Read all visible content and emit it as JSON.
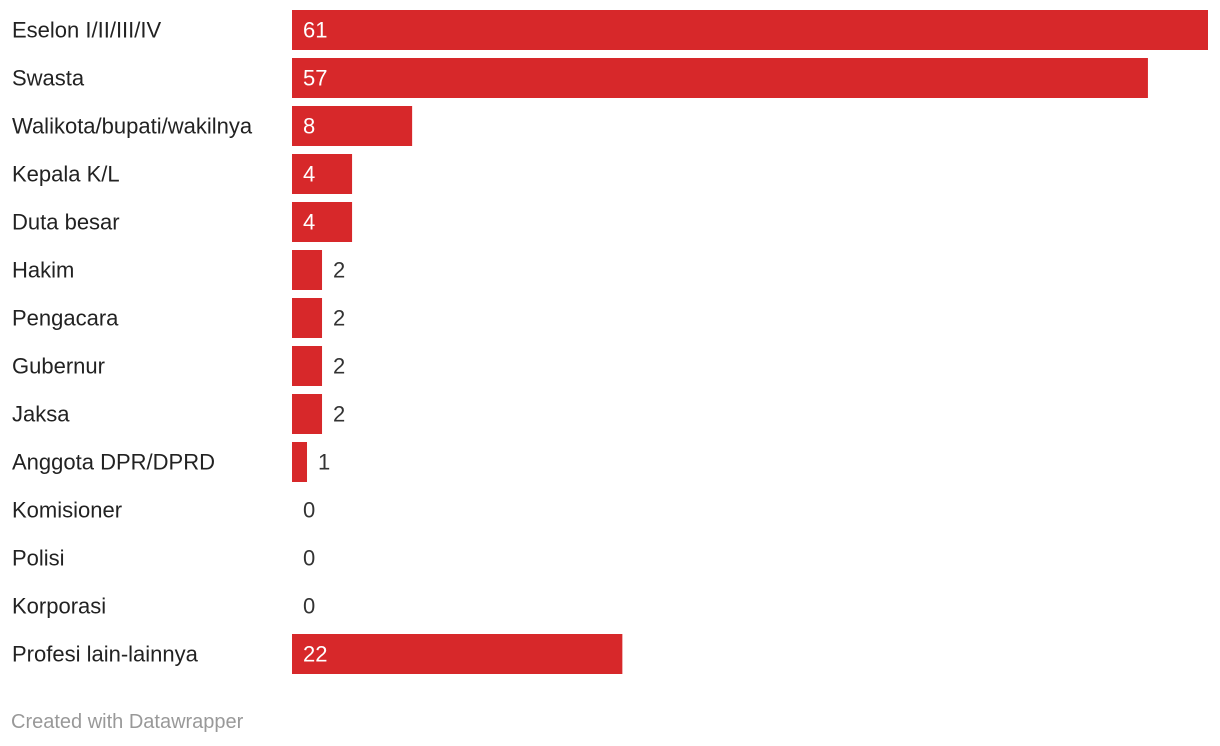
{
  "colors": {
    "bar": "#d7282a",
    "label_text": "#222222",
    "value_inside": "#ffffff",
    "value_outside": "#333333",
    "credit_text": "#999999"
  },
  "chart_data": {
    "type": "bar",
    "orientation": "horizontal",
    "categories": [
      "Eselon I/II/III/IV",
      "Swasta",
      "Walikota/bupati/wakilnya",
      "Kepala K/L",
      "Duta besar",
      "Hakim",
      "Pengacara",
      "Gubernur",
      "Jaksa",
      "Anggota DPR/DPRD",
      "Komisioner",
      "Polisi",
      "Korporasi",
      "Profesi lain-lainnya"
    ],
    "values": [
      61,
      57,
      8,
      4,
      4,
      2,
      2,
      2,
      2,
      1,
      0,
      0,
      0,
      22
    ],
    "xlim": [
      0,
      61
    ],
    "grid": false,
    "legend": "none",
    "value_labels": true
  },
  "footer": {
    "credit": "Created with Datawrapper"
  }
}
